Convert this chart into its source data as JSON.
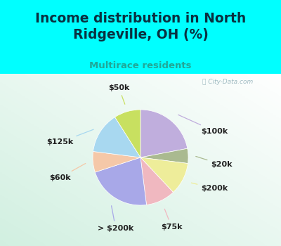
{
  "title": "Income distribution in North\nRidgeville, OH (%)",
  "subtitle": "Multirace residents",
  "watermark": "City-Data.com",
  "labels": [
    "$100k",
    "$20k",
    "$200k",
    "$75k",
    "> $200k",
    "$60k",
    "$125k",
    "$50k"
  ],
  "values": [
    22,
    5,
    11,
    10,
    22,
    7,
    14,
    9
  ],
  "colors": [
    "#c0aedd",
    "#aaba90",
    "#eeed9a",
    "#f0b8c0",
    "#a8a8e8",
    "#f5c8a8",
    "#a8d8f0",
    "#c8e060"
  ],
  "bg_cyan": "#00ffff",
  "title_color": "#0a3040",
  "subtitle_color": "#20a898",
  "label_color": "#202020",
  "startangle": 90,
  "label_fontsize": 8,
  "title_fontsize": 13.5
}
